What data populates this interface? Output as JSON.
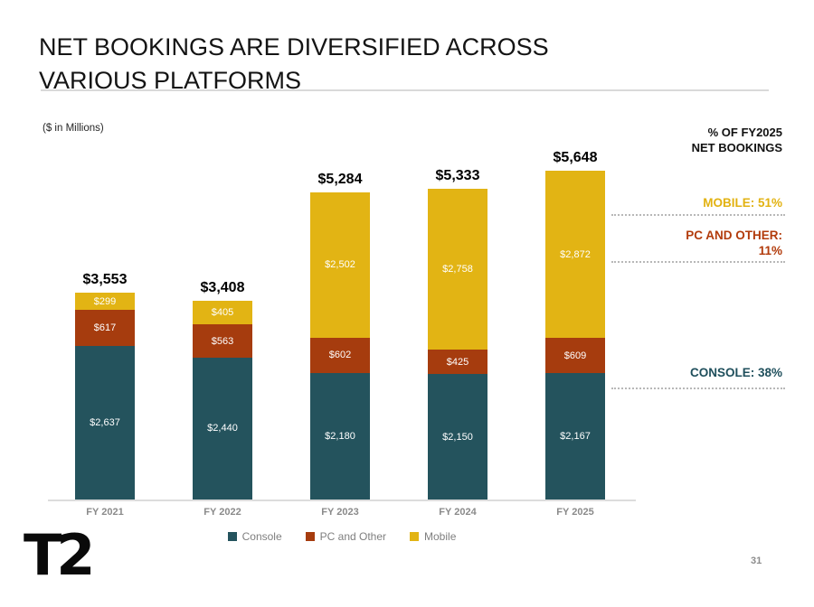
{
  "title": {
    "line1": "NET BOOKINGS ARE DIVERSIFIED ACROSS",
    "line2": "VARIOUS PLATFORMS"
  },
  "units_label": "($ in Millions)",
  "right_panel": {
    "header_line1": "% OF FY2025",
    "header_line2": "NET BOOKINGS",
    "mobile": {
      "text": "MOBILE: 51%",
      "color": "#E2B211"
    },
    "pc": {
      "line1": "PC AND OTHER:",
      "line2": "11%",
      "color": "#B23B0B"
    },
    "console": {
      "text": "CONSOLE: 38%",
      "color": "#1F4F5C"
    }
  },
  "chart_data": {
    "type": "bar",
    "stacked": true,
    "title": "Net bookings by platform, $ in Millions",
    "xlabel": "",
    "ylabel": "($ in Millions)",
    "grid": false,
    "legend_position": "bottom",
    "ylim": [
      0,
      5648
    ],
    "categories": [
      "FY 2021",
      "FY 2022",
      "FY 2023",
      "FY 2024",
      "FY 2025"
    ],
    "series": [
      {
        "name": "Console",
        "color": "#24535D",
        "values": [
          2637,
          2440,
          2180,
          2150,
          2167
        ],
        "labels": [
          "$2,637",
          "$2,440",
          "$2,180",
          "$2,150",
          "$2,167"
        ]
      },
      {
        "name": "PC and Other",
        "color": "#A63C0E",
        "values": [
          617,
          563,
          602,
          425,
          609
        ],
        "labels": [
          "$617",
          "$563",
          "$602",
          "$425",
          "$609"
        ]
      },
      {
        "name": "Mobile",
        "color": "#E2B414",
        "values": [
          299,
          405,
          2502,
          2758,
          2872
        ],
        "labels": [
          "$299",
          "$405",
          "$2,502",
          "$2,758",
          "$2,872"
        ]
      }
    ],
    "totals": [
      3553,
      3408,
      5284,
      5333,
      5648
    ],
    "totals_display": [
      "$3,553",
      "$3,408",
      "$5,284",
      "$5,333",
      "$5,648"
    ]
  },
  "footer": {
    "logo_text": "T2",
    "page_number": "31"
  }
}
